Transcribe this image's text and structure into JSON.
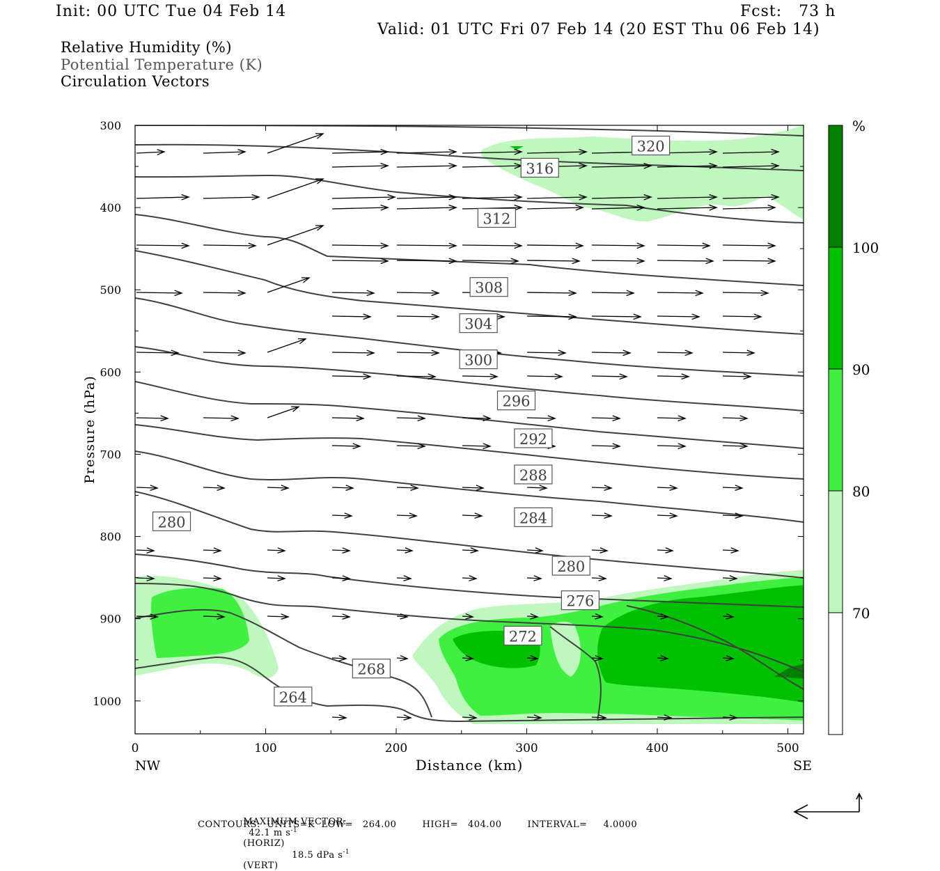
{
  "header": {
    "init": "Init: 00 UTC Tue 04 Feb 14",
    "fcst": "Fcst:   73 h",
    "valid": "Valid: 01 UTC Fri 07 Feb 14 (20 EST Thu 06 Feb 14)"
  },
  "fields": {
    "rh": "Relative Humidity (%)",
    "theta": "Potential Temperature (K)",
    "vectors": "Circulation Vectors"
  },
  "footer": {
    "max_vector_label": "MAXIMUM VECTOR:",
    "max_horiz": "42.1 m s",
    "max_horiz_unit": "(HORIZ)",
    "max_vert": "18.5 dPa s",
    "max_vert_unit": "(VERT)",
    "exponent": "-1",
    "contours": "CONTOURS:  UNITS=K  LOW=   264.00        HIGH=   404.00        INTERVAL=     4.0000"
  },
  "colors": {
    "rh_70_80": "#bff7bf",
    "rh_80_90": "#40f040",
    "rh_90_100": "#00c000",
    "rh_100": "#008000",
    "contour": "#404040"
  },
  "chart_data": {
    "type": "cross-section",
    "xlabel": "Distance (km)",
    "ylabel": "Pressure (hPa)",
    "xlim": [
      0,
      512
    ],
    "ylim": [
      1040,
      300
    ],
    "x_ticks": [
      "0",
      "100",
      "200",
      "300",
      "400",
      "500"
    ],
    "x_end_labels": [
      "NW",
      "SE"
    ],
    "y_ticks": [
      "300",
      "400",
      "500",
      "600",
      "700",
      "800",
      "900",
      "1000"
    ],
    "colorbar": {
      "unit": "%",
      "ticks": [
        "70",
        "80",
        "90",
        "100"
      ]
    },
    "contour_labels": [
      {
        "value": "320",
        "x": 395,
        "p": 325
      },
      {
        "value": "316",
        "x": 310,
        "p": 352
      },
      {
        "value": "312",
        "x": 277,
        "p": 413
      },
      {
        "value": "308",
        "x": 271,
        "p": 497
      },
      {
        "value": "304",
        "x": 263,
        "p": 541
      },
      {
        "value": "300",
        "x": 263,
        "p": 585
      },
      {
        "value": "296",
        "x": 292,
        "p": 635
      },
      {
        "value": "292",
        "x": 305,
        "p": 681
      },
      {
        "value": "288",
        "x": 305,
        "p": 725
      },
      {
        "value": "284",
        "x": 305,
        "p": 777
      },
      {
        "value": "280",
        "x": 334,
        "p": 836
      },
      {
        "value": "280",
        "x": 28,
        "p": 782
      },
      {
        "value": "276",
        "x": 341,
        "p": 878
      },
      {
        "value": "272",
        "x": 297,
        "p": 921
      },
      {
        "value": "268",
        "x": 181,
        "p": 961
      },
      {
        "value": "264",
        "x": 121,
        "p": 995
      }
    ]
  }
}
